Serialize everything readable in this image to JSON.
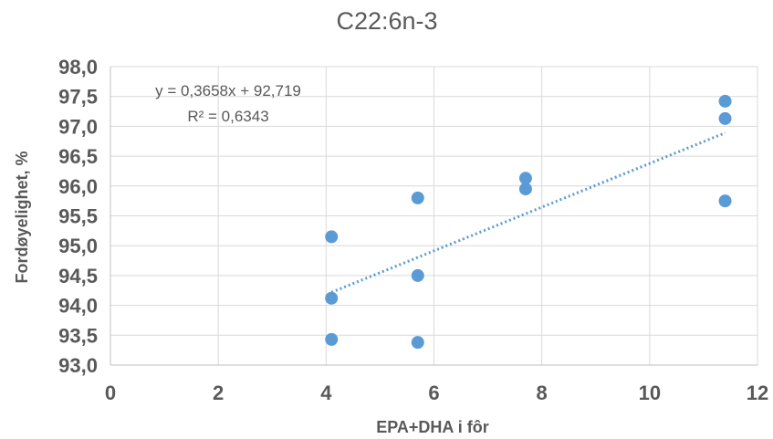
{
  "chart_data": {
    "type": "scatter",
    "title": "C22:6n-3",
    "xlabel": "EPA+DHA i fôr",
    "ylabel": "Fordøyelighet, %",
    "xlim": [
      0,
      12
    ],
    "ylim": [
      93.0,
      98.0
    ],
    "x_ticks": [
      "0",
      "2",
      "4",
      "6",
      "8",
      "10",
      "12"
    ],
    "y_ticks": [
      "93,0",
      "93,5",
      "94,0",
      "94,5",
      "95,0",
      "95,5",
      "96,0",
      "96,5",
      "97,0",
      "97,5",
      "98,0"
    ],
    "grid": true,
    "series": [
      {
        "color": "#5b9bd5",
        "points": [
          {
            "x": 4.1,
            "y": 95.15
          },
          {
            "x": 4.1,
            "y": 94.12
          },
          {
            "x": 4.1,
            "y": 93.43
          },
          {
            "x": 5.7,
            "y": 95.8
          },
          {
            "x": 5.7,
            "y": 94.5
          },
          {
            "x": 5.7,
            "y": 93.38
          },
          {
            "x": 7.7,
            "y": 96.13
          },
          {
            "x": 7.7,
            "y": 95.95
          },
          {
            "x": 11.4,
            "y": 97.42
          },
          {
            "x": 11.4,
            "y": 97.13
          },
          {
            "x": 11.4,
            "y": 95.75
          }
        ]
      }
    ],
    "trendline": {
      "type": "linear",
      "slope": 0.3658,
      "intercept": 92.719,
      "x_range": [
        4.1,
        11.4
      ],
      "style": "dotted",
      "color": "#5b9bd5",
      "equation_label": "y = 0,3658x + 92,719",
      "r2_label": "R² = 0,6343"
    }
  }
}
